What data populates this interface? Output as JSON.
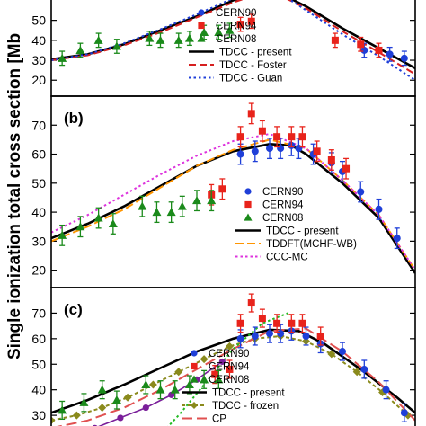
{
  "chart_data": {
    "type": "scatter",
    "ylabel": "Single ionization total cross section [Mb",
    "panels": [
      {
        "tag": "",
        "ylim": [
          12,
          62
        ],
        "yticks": [
          20,
          30,
          40,
          50
        ],
        "experiment": [
          {
            "name": "CERN90",
            "color": "#1f3fd8",
            "marker": "circle",
            "points": [
              [
                0.86,
                35
              ],
              [
                0.93,
                33
              ],
              [
                0.97,
                31
              ]
            ]
          },
          {
            "name": "CERN94",
            "color": "#e8231b",
            "marker": "square",
            "points": [
              [
                0.52,
                48
              ],
              [
                0.55,
                49.5
              ],
              [
                0.78,
                40
              ],
              [
                0.85,
                38
              ],
              [
                0.9,
                35
              ]
            ]
          },
          {
            "name": "CERN08",
            "color": "#1a8a1a",
            "marker": "triangle",
            "points": [
              [
                0.03,
                31
              ],
              [
                0.08,
                35
              ],
              [
                0.13,
                40
              ],
              [
                0.18,
                37
              ],
              [
                0.27,
                41
              ],
              [
                0.3,
                40
              ],
              [
                0.35,
                40
              ],
              [
                0.38,
                41
              ],
              [
                0.42,
                44
              ],
              [
                0.46,
                44
              ],
              [
                0.49,
                45
              ]
            ]
          }
        ],
        "theory": [
          {
            "name": "TDCC - present",
            "color": "#000000",
            "dash": "",
            "width": 2.6,
            "points": [
              [
                0.0,
                30.5
              ],
              [
                0.1,
                33
              ],
              [
                0.2,
                38
              ],
              [
                0.3,
                45
              ],
              [
                0.4,
                52
              ],
              [
                0.5,
                60
              ],
              [
                0.6,
                66
              ],
              [
                0.7,
                57
              ],
              [
                0.8,
                46
              ],
              [
                0.9,
                36
              ],
              [
                1.0,
                26
              ]
            ]
          },
          {
            "name": "TDCC - Foster",
            "color": "#d62020",
            "dash": "8,4",
            "width": 2,
            "points": [
              [
                0.0,
                30
              ],
              [
                0.1,
                32.5
              ],
              [
                0.2,
                37.5
              ],
              [
                0.3,
                44
              ],
              [
                0.4,
                51.5
              ],
              [
                0.5,
                59
              ],
              [
                0.6,
                65
              ],
              [
                0.7,
                56
              ],
              [
                0.8,
                44.5
              ],
              [
                0.9,
                34
              ],
              [
                1.0,
                23
              ]
            ]
          },
          {
            "name": "TDCC - Guan",
            "color": "#1f3fd8",
            "dash": "2.5,3",
            "width": 2,
            "points": [
              [
                0.0,
                30
              ],
              [
                0.1,
                33
              ],
              [
                0.2,
                38.5
              ],
              [
                0.3,
                45.5
              ],
              [
                0.4,
                53
              ],
              [
                0.5,
                61
              ],
              [
                0.6,
                67
              ],
              [
                0.7,
                55
              ],
              [
                0.8,
                43
              ],
              [
                0.9,
                32
              ],
              [
                1.0,
                20
              ]
            ]
          }
        ]
      },
      {
        "tag": "(b)",
        "ylim": [
          14,
          80
        ],
        "yticks": [
          20,
          30,
          40,
          50,
          60,
          70
        ],
        "experiment": [
          {
            "name": "CERN90",
            "color": "#1f3fd8",
            "marker": "circle",
            "points": [
              [
                0.52,
                60
              ],
              [
                0.56,
                61
              ],
              [
                0.6,
                62
              ],
              [
                0.63,
                62
              ],
              [
                0.66,
                63
              ],
              [
                0.68,
                62
              ],
              [
                0.72,
                60
              ],
              [
                0.77,
                57
              ],
              [
                0.8,
                54
              ],
              [
                0.85,
                47
              ],
              [
                0.9,
                41
              ],
              [
                0.95,
                31
              ]
            ]
          },
          {
            "name": "CERN94",
            "color": "#e8231b",
            "marker": "square",
            "points": [
              [
                0.44,
                46
              ],
              [
                0.47,
                48
              ],
              [
                0.52,
                66
              ],
              [
                0.55,
                74
              ],
              [
                0.58,
                68
              ],
              [
                0.62,
                66
              ],
              [
                0.66,
                66
              ],
              [
                0.69,
                66
              ],
              [
                0.73,
                61
              ],
              [
                0.77,
                58
              ],
              [
                0.81,
                55
              ]
            ]
          },
          {
            "name": "CERN08",
            "color": "#1a8a1a",
            "marker": "triangle",
            "points": [
              [
                0.03,
                32
              ],
              [
                0.08,
                35
              ],
              [
                0.13,
                38
              ],
              [
                0.17,
                36
              ],
              [
                0.25,
                42
              ],
              [
                0.29,
                40
              ],
              [
                0.33,
                40
              ],
              [
                0.36,
                42
              ],
              [
                0.4,
                44
              ],
              [
                0.44,
                44
              ]
            ]
          }
        ],
        "theory": [
          {
            "name": "TDCC - present",
            "color": "#000000",
            "dash": "",
            "width": 2.6,
            "points": [
              [
                0.0,
                31
              ],
              [
                0.1,
                36
              ],
              [
                0.2,
                42
              ],
              [
                0.3,
                49
              ],
              [
                0.4,
                56
              ],
              [
                0.5,
                61
              ],
              [
                0.6,
                63.5
              ],
              [
                0.66,
                63
              ],
              [
                0.7,
                60
              ],
              [
                0.8,
                50
              ],
              [
                0.9,
                38
              ],
              [
                1.0,
                19
              ]
            ]
          },
          {
            "name": "TDDFT(MCHF-WB)",
            "color": "#ff9500",
            "dash": "9,4",
            "width": 2,
            "points": [
              [
                0.0,
                30
              ],
              [
                0.1,
                35
              ],
              [
                0.2,
                41
              ],
              [
                0.3,
                48.5
              ],
              [
                0.4,
                56
              ],
              [
                0.5,
                61.5
              ],
              [
                0.6,
                65
              ],
              [
                0.7,
                62
              ],
              [
                0.8,
                51
              ],
              [
                0.9,
                39
              ],
              [
                1.0,
                20
              ]
            ]
          },
          {
            "name": "CCC-MC",
            "color": "#dd33dd",
            "dash": "2.5,3",
            "width": 2,
            "points": [
              [
                0.0,
                33
              ],
              [
                0.1,
                39
              ],
              [
                0.2,
                46
              ],
              [
                0.3,
                53
              ],
              [
                0.4,
                59.5
              ],
              [
                0.5,
                64.5
              ],
              [
                0.6,
                67
              ],
              [
                0.7,
                62
              ],
              [
                0.8,
                51
              ],
              [
                0.9,
                39
              ],
              [
                1.0,
                20
              ]
            ]
          }
        ]
      },
      {
        "tag": "(c)",
        "ylim": [
          23,
          80
        ],
        "yticks": [
          30,
          40,
          50,
          60,
          70
        ],
        "experiment": [
          {
            "name": "CERN90",
            "color": "#1f3fd8",
            "marker": "circle",
            "points": [
              [
                0.52,
                60
              ],
              [
                0.56,
                61
              ],
              [
                0.6,
                62
              ],
              [
                0.63,
                62
              ],
              [
                0.66,
                63
              ],
              [
                0.7,
                61
              ],
              [
                0.74,
                58
              ],
              [
                0.8,
                55
              ],
              [
                0.86,
                48
              ],
              [
                0.92,
                40
              ],
              [
                0.97,
                31
              ]
            ]
          },
          {
            "name": "CERN94",
            "color": "#e8231b",
            "marker": "square",
            "points": [
              [
                0.45,
                46
              ],
              [
                0.49,
                48
              ],
              [
                0.52,
                66
              ],
              [
                0.55,
                74
              ],
              [
                0.58,
                68
              ],
              [
                0.62,
                66
              ],
              [
                0.66,
                66
              ],
              [
                0.69,
                66
              ],
              [
                0.74,
                61
              ]
            ]
          },
          {
            "name": "CERN08",
            "color": "#1a8a1a",
            "marker": "triangle",
            "points": [
              [
                0.03,
                32
              ],
              [
                0.09,
                35
              ],
              [
                0.14,
                40
              ],
              [
                0.18,
                36
              ],
              [
                0.26,
                42
              ],
              [
                0.3,
                40
              ],
              [
                0.34,
                40
              ],
              [
                0.38,
                42
              ],
              [
                0.42,
                44
              ],
              [
                0.46,
                44
              ]
            ]
          }
        ],
        "theory": [
          {
            "name": "TDCC - present",
            "color": "#000000",
            "dash": "",
            "width": 2.6,
            "points": [
              [
                0.0,
                31
              ],
              [
                0.1,
                36
              ],
              [
                0.2,
                42
              ],
              [
                0.3,
                48.5
              ],
              [
                0.4,
                55
              ],
              [
                0.5,
                60
              ],
              [
                0.6,
                63.5
              ],
              [
                0.68,
                63
              ],
              [
                0.75,
                58
              ],
              [
                0.85,
                48
              ],
              [
                0.95,
                37
              ],
              [
                1.0,
                31
              ]
            ]
          },
          {
            "name": "TDCC - frozen",
            "color": "#8a8a1c",
            "dash": "4,3",
            "width": 2,
            "marker": "diamond",
            "points": [
              [
                0.0,
                28
              ],
              [
                0.07,
                30
              ],
              [
                0.14,
                33
              ],
              [
                0.21,
                37
              ],
              [
                0.28,
                42
              ],
              [
                0.35,
                47
              ],
              [
                0.42,
                52
              ],
              [
                0.49,
                57
              ],
              [
                0.56,
                60
              ],
              [
                0.63,
                61
              ],
              [
                0.7,
                59
              ],
              [
                0.77,
                54
              ],
              [
                0.84,
                47
              ],
              [
                0.91,
                39
              ],
              [
                0.98,
                30
              ]
            ]
          },
          {
            "name": "CP",
            "color": "#e05050",
            "dash": "12,5",
            "width": 2,
            "points": [
              [
                0.0,
                25
              ],
              [
                0.1,
                28
              ],
              [
                0.2,
                33
              ],
              [
                0.3,
                40
              ],
              [
                0.4,
                48
              ],
              [
                0.5,
                56
              ],
              [
                0.6,
                63
              ],
              [
                0.7,
                64
              ],
              [
                0.8,
                55
              ],
              [
                0.9,
                43
              ],
              [
                1.0,
                28
              ]
            ]
          },
          {
            "name": "",
            "color": "#22bb22",
            "dash": "2.5,3",
            "width": 2,
            "points": [
              [
                0.27,
                18
              ],
              [
                0.35,
                30
              ],
              [
                0.42,
                42
              ],
              [
                0.5,
                56
              ],
              [
                0.58,
                66
              ],
              [
                0.65,
                70
              ]
            ]
          },
          {
            "name": "",
            "color": "#7a1f9a",
            "dash": "",
            "width": 1.6,
            "marker": "circle",
            "points": [
              [
                0.05,
                21
              ],
              [
                0.12,
                25
              ],
              [
                0.19,
                29
              ],
              [
                0.26,
                33
              ],
              [
                0.33,
                38
              ],
              [
                0.4,
                44
              ],
              [
                0.47,
                51
              ]
            ]
          }
        ]
      }
    ]
  }
}
